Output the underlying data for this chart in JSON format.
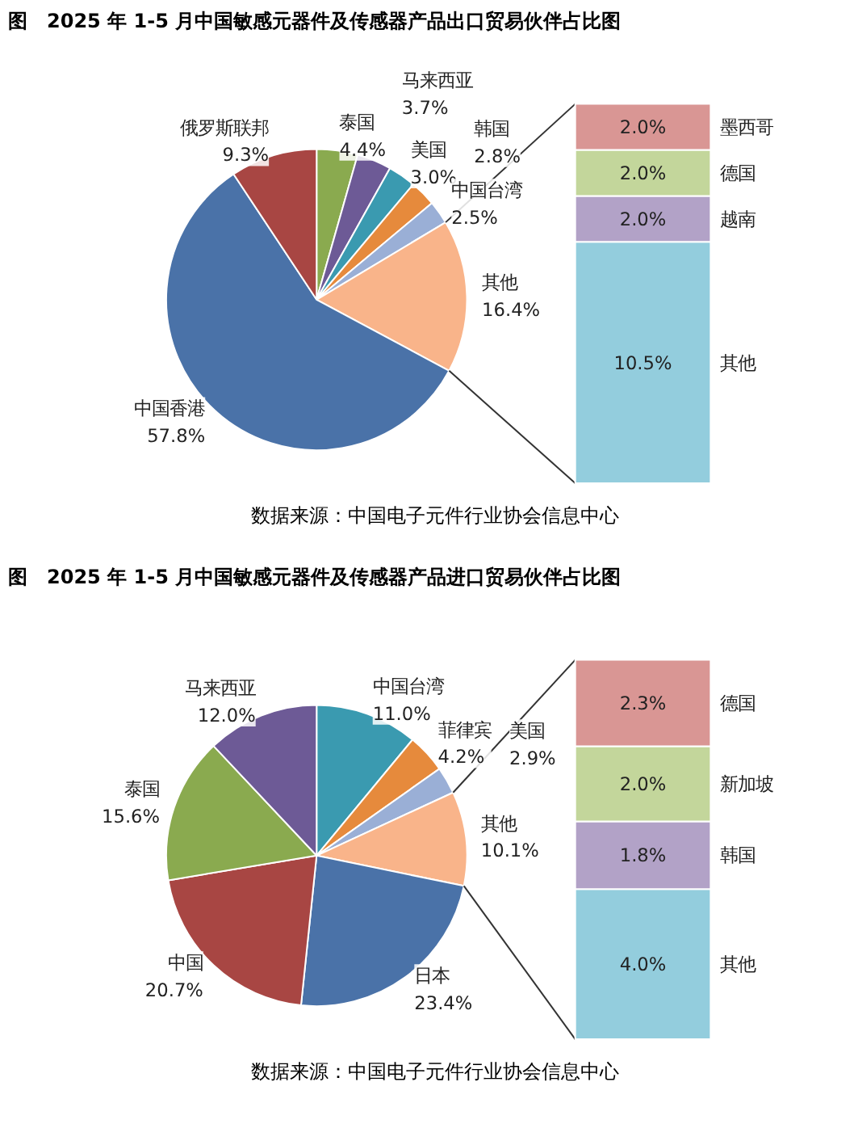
{
  "chart_data": [
    {
      "type": "pie",
      "title": "图　2025 年 1-5 月中国敏感元器件及传感器产品出口贸易伙伴占比图",
      "categories": [
        "泰国",
        "马来西亚",
        "美国",
        "韩国",
        "中国台湾",
        "其他",
        "中国香港",
        "俄罗斯联邦"
      ],
      "values": [
        4.4,
        3.7,
        3.0,
        2.8,
        2.5,
        16.4,
        57.8,
        9.3
      ],
      "colors": [
        "#8aaa4f",
        "#6d5a96",
        "#3a9ab0",
        "#e68a3c",
        "#9aafd6",
        "#f9b48a",
        "#4a72a8",
        "#a84643"
      ],
      "value_labels": [
        "4.4%",
        "3.7%",
        "3.0%",
        "2.8%",
        "2.5%",
        "16.4%",
        "57.8%",
        "9.3%"
      ],
      "annotations": [
        "数据来源：中国电子元件行业协会信息中心"
      ]
    },
    {
      "type": "bar",
      "stacked": true,
      "categories": [
        null
      ],
      "series": [
        {
          "name": "其他",
          "color": "#93cddd",
          "values": [
            10.5
          ],
          "value_labels": [
            "10.5%"
          ]
        },
        {
          "name": "越南",
          "color": "#b2a2c7",
          "values": [
            2.0
          ],
          "value_labels": [
            "2.0%"
          ]
        },
        {
          "name": "德国",
          "color": "#c3d69b",
          "values": [
            2.0
          ],
          "value_labels": [
            "2.0%"
          ]
        },
        {
          "name": "墨西哥",
          "color": "#d99694",
          "values": [
            2.0
          ],
          "value_labels": [
            "2.0%"
          ]
        }
      ]
    },
    {
      "type": "pie",
      "title": "图　2025 年 1-5 月中国敏感元器件及传感器产品进口贸易伙伴占比图",
      "categories": [
        "中国台湾",
        "菲律宾",
        "美国",
        "其他",
        "日本",
        "中国",
        "泰国",
        "马来西亚"
      ],
      "values": [
        11.0,
        4.2,
        2.9,
        10.1,
        23.4,
        20.7,
        15.6,
        12.0
      ],
      "colors": [
        "#3a9ab0",
        "#e68a3c",
        "#9aafd6",
        "#f9b48a",
        "#4a72a8",
        "#a84643",
        "#8aaa4f",
        "#6d5a96"
      ],
      "value_labels": [
        "11.0%",
        "4.2%",
        "2.9%",
        "10.1%",
        "23.4%",
        "20.7%",
        "15.6%",
        "12.0%"
      ],
      "annotations": [
        "数据来源：中国电子元件行业协会信息中心"
      ]
    },
    {
      "type": "bar",
      "stacked": true,
      "categories": [
        null
      ],
      "series": [
        {
          "name": "其他",
          "color": "#93cddd",
          "values": [
            4.0
          ],
          "value_labels": [
            "4.0%"
          ]
        },
        {
          "name": "韩国",
          "color": "#b2a2c7",
          "values": [
            1.8
          ],
          "value_labels": [
            "1.8%"
          ]
        },
        {
          "name": "新加坡",
          "color": "#c3d69b",
          "values": [
            2.0
          ],
          "value_labels": [
            "2.0%"
          ]
        },
        {
          "name": "德国",
          "color": "#d99694",
          "values": [
            2.3
          ],
          "value_labels": [
            "2.3%"
          ]
        }
      ]
    }
  ]
}
